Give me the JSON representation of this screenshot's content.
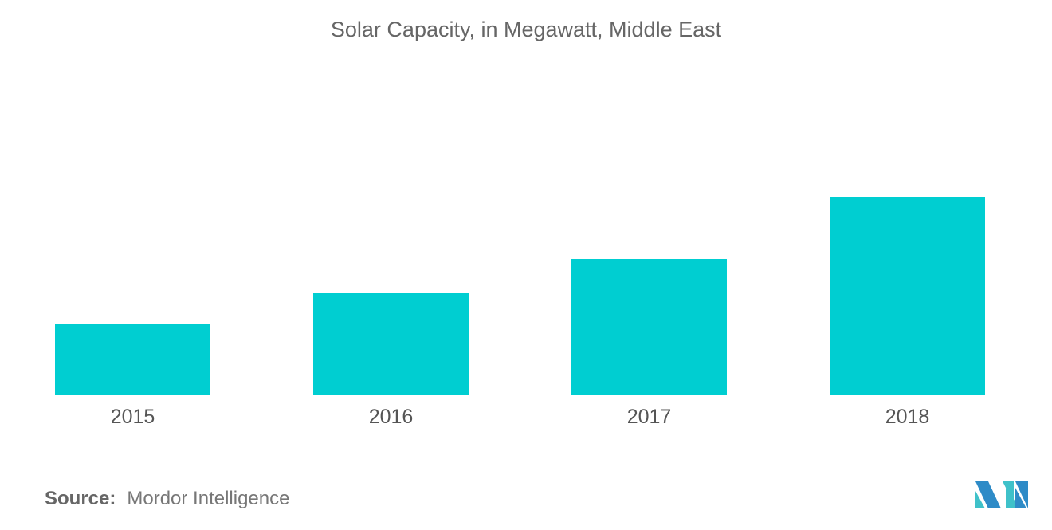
{
  "chart_data": {
    "type": "bar",
    "title": "Solar Capacity, in Megawatt, Middle East",
    "categories": [
      "2015",
      "2016",
      "2017",
      "2018"
    ],
    "values": [
      90,
      128,
      171,
      249
    ],
    "xlabel": "",
    "ylabel": "",
    "ylim": [
      0,
      249
    ],
    "grid": false,
    "bar_color": "#00CED1"
  },
  "source": {
    "label": "Source:",
    "text": "Mordor Intelligence"
  },
  "logo": {
    "text": "MI",
    "colors": [
      "#2E8BC7",
      "#3FC1C9"
    ]
  }
}
